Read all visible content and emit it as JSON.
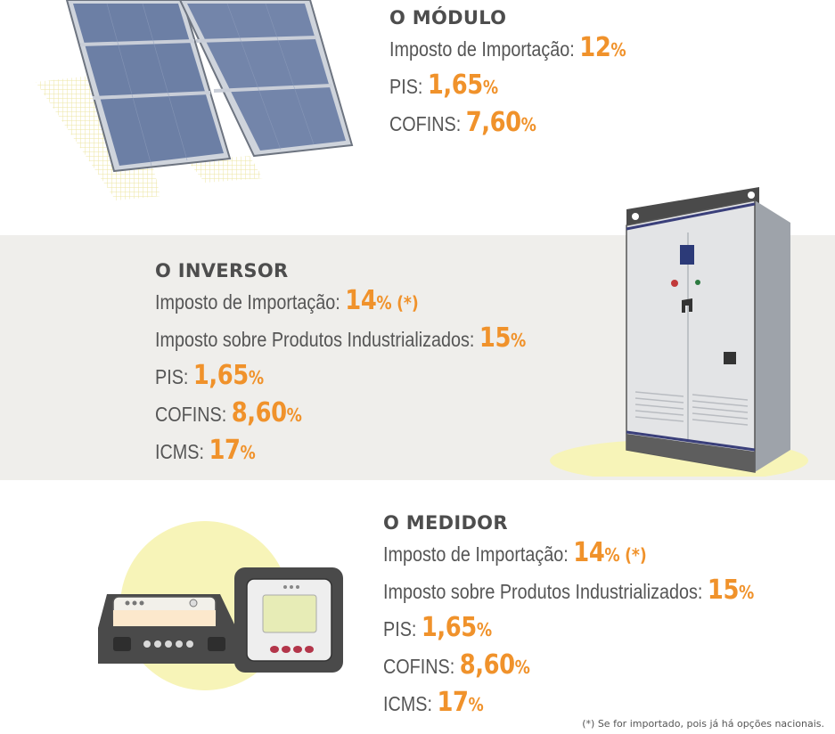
{
  "modulo": {
    "title": "O MÓDULO",
    "rows": [
      {
        "label": "Imposto de Importação:",
        "value": "12",
        "pct": "%",
        "note": ""
      },
      {
        "label": "PIS:",
        "value": "1,65",
        "pct": "%",
        "note": ""
      },
      {
        "label": "COFINS:",
        "value": "7,60",
        "pct": "%",
        "note": ""
      }
    ]
  },
  "inversor": {
    "title": "O INVERSOR",
    "rows": [
      {
        "label": "Imposto de Importação:",
        "value": "14",
        "pct": "%",
        "note": "(*)"
      },
      {
        "label": "Imposto sobre Produtos Industrializados:",
        "value": "15",
        "pct": "%",
        "note": ""
      },
      {
        "label": "PIS:",
        "value": "1,65",
        "pct": "%",
        "note": ""
      },
      {
        "label": "COFINS:",
        "value": "8,60",
        "pct": "%",
        "note": ""
      },
      {
        "label": "ICMS:",
        "value": "17",
        "pct": "%",
        "note": ""
      }
    ]
  },
  "medidor": {
    "title": "O MEDIDOR",
    "rows": [
      {
        "label": "Imposto de Importação:",
        "value": "14",
        "pct": "%",
        "note": "(*)"
      },
      {
        "label": "Imposto sobre Produtos Industrializados:",
        "value": "15",
        "pct": "%",
        "note": ""
      },
      {
        "label": "PIS:",
        "value": "1,65",
        "pct": "%",
        "note": ""
      },
      {
        "label": "COFINS:",
        "value": "8,60",
        "pct": "%",
        "note": ""
      },
      {
        "label": "ICMS:",
        "value": "17",
        "pct": "%",
        "note": ""
      }
    ]
  },
  "footnote": "(*) Se for importado, pois já há opções nacionais.",
  "colors": {
    "accent": "#f0922b",
    "text": "#555555",
    "band": "#efeeeb",
    "highlight": "#f7f4b8"
  },
  "icons": [
    "solar-panel-icon",
    "inverter-cabinet-icon",
    "meter-devices-icon"
  ]
}
